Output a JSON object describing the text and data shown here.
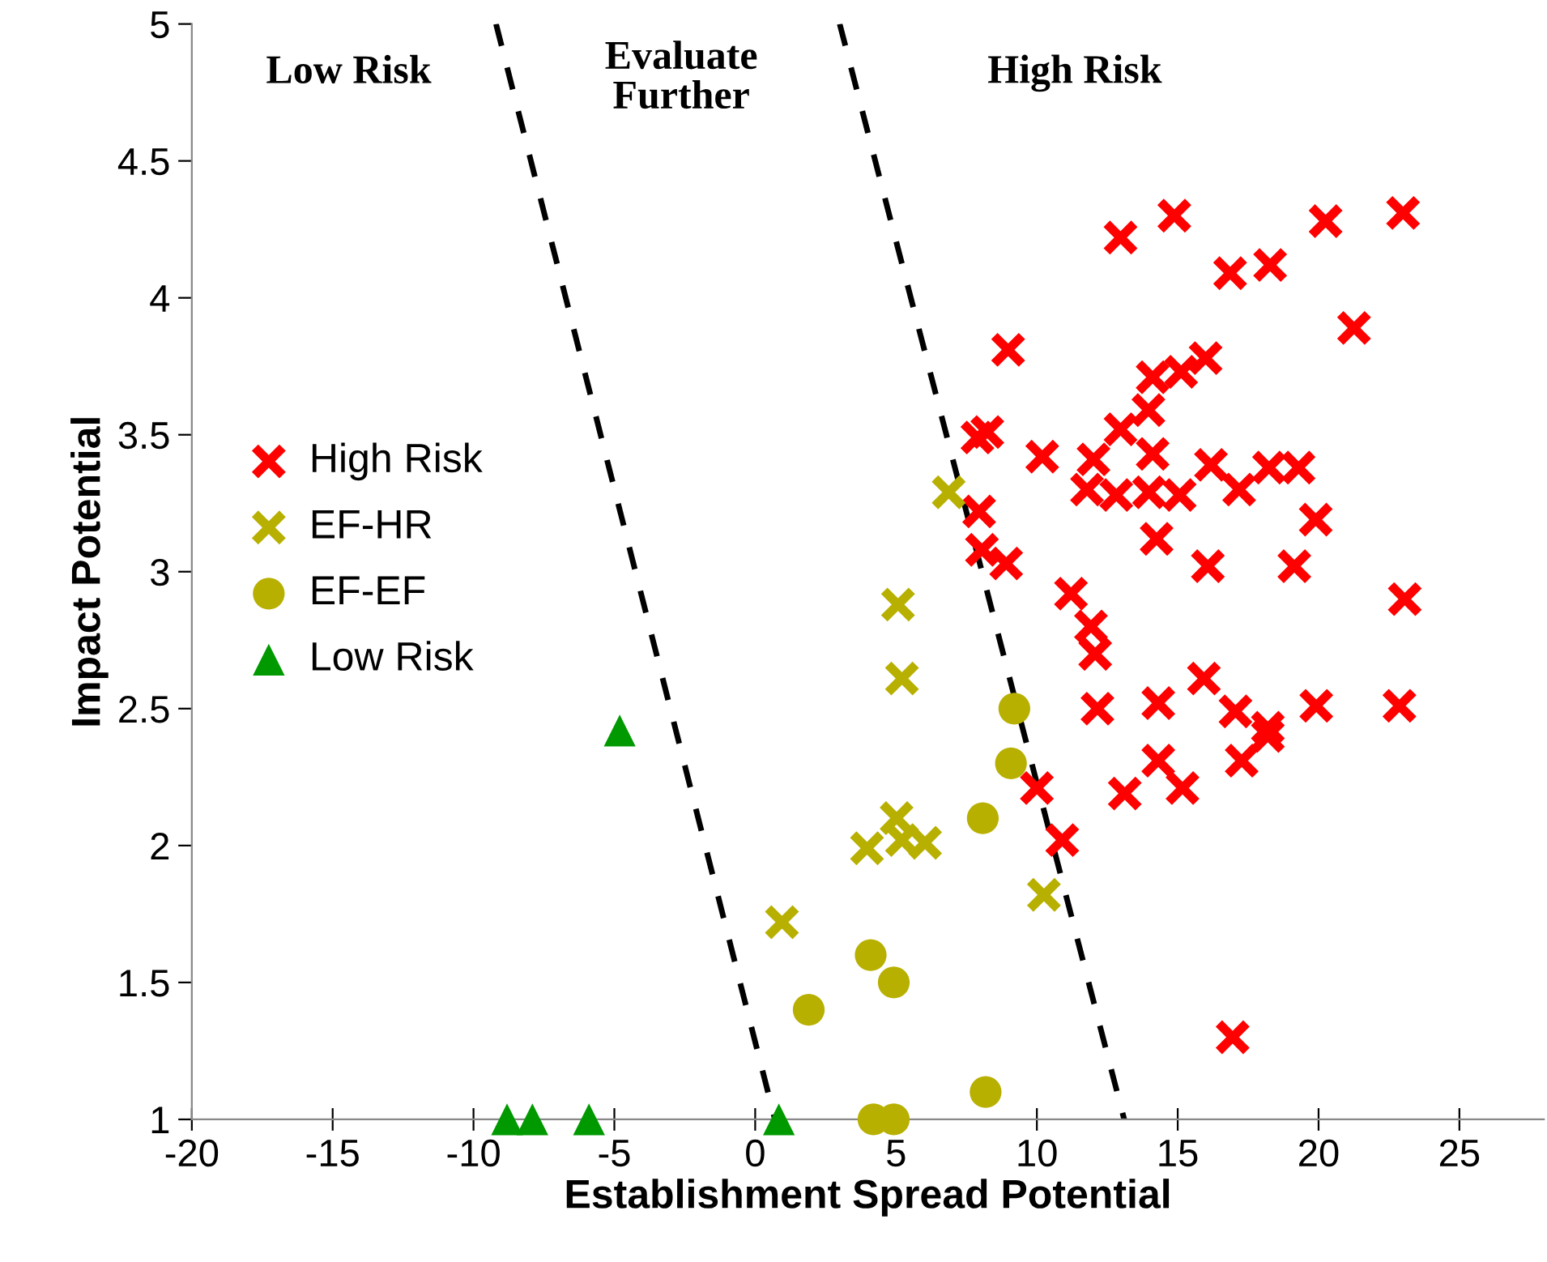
{
  "chart_data": {
    "type": "scatter",
    "xlabel": "Establishment Spread Potential",
    "ylabel": "Impact Potential",
    "xlim": [
      -20,
      28
    ],
    "xticks": [
      -20,
      -15,
      -10,
      -5,
      0,
      5,
      10,
      15,
      20,
      25
    ],
    "ylim": [
      1,
      5
    ],
    "yticks": [
      1,
      1.5,
      2,
      2.5,
      3,
      3.5,
      4,
      4.5,
      5
    ],
    "grid": false,
    "legend": "center left",
    "annotations": [
      "Low Risk",
      "Evaluate\nFurther",
      "High Risk"
    ],
    "series": [
      {
        "name": "High Risk",
        "color": "#ff0000",
        "marker": "cross",
        "x": [
          12.97,
          14.88,
          20.25,
          23.0,
          16.86,
          18.28,
          21.26,
          8.98,
          14.11,
          15.12,
          15.99,
          13.96,
          12.97,
          7.89,
          8.24,
          10.19,
          12.01,
          14.11,
          16.18,
          18.24,
          19.29,
          11.78,
          12.82,
          13.98,
          15.07,
          17.18,
          19.9,
          7.95,
          14.25,
          8.05,
          8.91,
          16.07,
          19.14,
          11.21,
          23.06,
          11.92,
          12.07,
          15.93,
          12.15,
          14.31,
          17.05,
          19.92,
          22.87,
          18.2,
          18.2,
          17.27,
          14.31,
          15.17,
          13.12,
          10.0,
          10.9,
          16.95
        ],
        "values": [
          4.22,
          4.3,
          4.28,
          4.31,
          4.09,
          4.12,
          3.89,
          3.81,
          3.71,
          3.73,
          3.78,
          3.59,
          3.52,
          3.49,
          3.51,
          3.42,
          3.41,
          3.43,
          3.39,
          3.38,
          3.38,
          3.3,
          3.28,
          3.29,
          3.28,
          3.3,
          3.19,
          3.22,
          3.12,
          3.08,
          3.03,
          3.02,
          3.02,
          2.92,
          2.9,
          2.8,
          2.7,
          2.61,
          2.5,
          2.52,
          2.49,
          2.51,
          2.51,
          2.43,
          2.4,
          2.31,
          2.31,
          2.21,
          2.19,
          2.21,
          2.02,
          1.3
        ]
      },
      {
        "name": "EF-HR",
        "color": "#b8b000",
        "marker": "cross",
        "x": [
          6.87,
          5.07,
          5.21,
          5.02,
          3.97,
          5.21,
          6.03,
          10.25,
          0.95
        ],
        "values": [
          3.29,
          2.88,
          2.61,
          2.1,
          1.99,
          2.02,
          2.01,
          1.82,
          1.72
        ]
      },
      {
        "name": "EF-EF",
        "color": "#b8b000",
        "marker": "circle",
        "x": [
          9.2,
          9.08,
          8.08,
          4.1,
          4.92,
          1.9,
          8.18,
          4.2,
          4.92
        ],
        "values": [
          2.5,
          2.3,
          2.1,
          1.6,
          1.5,
          1.4,
          1.1,
          1.0,
          1.0
        ]
      },
      {
        "name": "Low Risk",
        "color": "#009900",
        "marker": "triangle",
        "x": [
          -4.81,
          -8.81,
          -7.91,
          -5.9,
          0.84
        ],
        "values": [
          2.42,
          1.0,
          1.0,
          1.0,
          1.0
        ]
      },
      {
        "type": "line",
        "color": "#000000",
        "line_style": "dashed",
        "x": [
          -9.2,
          0.7
        ],
        "values": [
          5.0,
          1.0
        ]
      },
      {
        "type": "line",
        "color": "#000000",
        "line_style": "dashed",
        "x": [
          3.0,
          13.1
        ],
        "values": [
          5.0,
          1.0
        ]
      }
    ]
  }
}
